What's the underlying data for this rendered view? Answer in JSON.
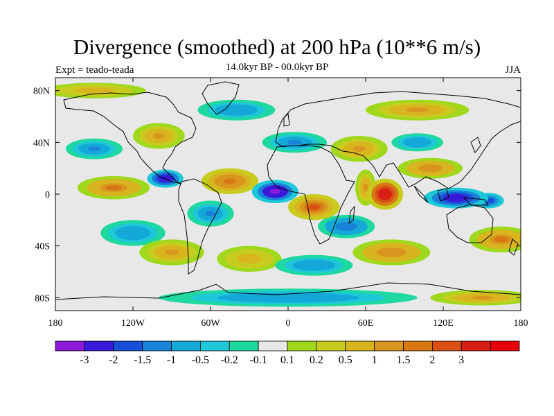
{
  "title": "Divergence (smoothed) at 200 hPa (10**6 m/s)",
  "subtitle": "14.0kyr BP - 00.0kyr BP",
  "experiment": "Expt = teado-teada",
  "season": "JJA",
  "map": {
    "projection": "cylindrical-equidistant",
    "lon_range": [
      -180,
      180
    ],
    "lat_range": [
      -90,
      90
    ],
    "lat_labels": [
      {
        "lat": 80,
        "label": "80N"
      },
      {
        "lat": 40,
        "label": "40N"
      },
      {
        "lat": 0,
        "label": "0"
      },
      {
        "lat": -40,
        "label": "40S"
      },
      {
        "lat": -80,
        "label": "80S"
      }
    ],
    "lon_labels": [
      {
        "lon": -180,
        "label": "180"
      },
      {
        "lon": -120,
        "label": "120W"
      },
      {
        "lon": -60,
        "label": "60W"
      },
      {
        "lon": 0,
        "label": "0"
      },
      {
        "lon": 60,
        "label": "60E"
      },
      {
        "lon": 120,
        "label": "120E"
      },
      {
        "lon": 180,
        "label": "180"
      }
    ],
    "field_features": [
      {
        "lon": -10,
        "lat": 2,
        "value": -3.5,
        "rx": 18,
        "ry": 9
      },
      {
        "lon": -95,
        "lat": 12,
        "value": -2.6,
        "rx": 14,
        "ry": 7
      },
      {
        "lon": 130,
        "lat": -3,
        "value": -3.0,
        "rx": 25,
        "ry": 8
      },
      {
        "lon": 155,
        "lat": -5,
        "value": -2.0,
        "rx": 12,
        "ry": 6
      },
      {
        "lon": 75,
        "lat": 0,
        "value": 3.8,
        "rx": 14,
        "ry": 12
      },
      {
        "lon": 20,
        "lat": -10,
        "value": 2.0,
        "rx": 20,
        "ry": 10
      },
      {
        "lon": -45,
        "lat": 10,
        "value": 1.8,
        "rx": 22,
        "ry": 10
      },
      {
        "lon": -135,
        "lat": 5,
        "value": 1.6,
        "rx": 28,
        "ry": 9
      },
      {
        "lon": 110,
        "lat": 20,
        "value": 1.4,
        "rx": 25,
        "ry": 8
      },
      {
        "lon": 55,
        "lat": 35,
        "value": 1.1,
        "rx": 22,
        "ry": 10
      },
      {
        "lon": -100,
        "lat": 45,
        "value": 1.2,
        "rx": 20,
        "ry": 10
      },
      {
        "lon": -150,
        "lat": 35,
        "value": -1.1,
        "rx": 22,
        "ry": 8
      },
      {
        "lon": 5,
        "lat": 40,
        "value": -1.2,
        "rx": 25,
        "ry": 8
      },
      {
        "lon": 100,
        "lat": 40,
        "value": -1.0,
        "rx": 20,
        "ry": 7
      },
      {
        "lon": -60,
        "lat": -15,
        "value": -1.2,
        "rx": 18,
        "ry": 10
      },
      {
        "lon": 45,
        "lat": -25,
        "value": -1.3,
        "rx": 22,
        "ry": 9
      },
      {
        "lon": 165,
        "lat": -35,
        "value": 1.5,
        "rx": 25,
        "ry": 10
      },
      {
        "lon": -90,
        "lat": -45,
        "value": 1.2,
        "rx": 25,
        "ry": 10
      },
      {
        "lon": 80,
        "lat": -45,
        "value": 1.3,
        "rx": 30,
        "ry": 10
      },
      {
        "lon": 20,
        "lat": -55,
        "value": -1.0,
        "rx": 30,
        "ry": 8
      },
      {
        "lon": -30,
        "lat": -50,
        "value": 0.8,
        "rx": 25,
        "ry": 10
      },
      {
        "lon": -120,
        "lat": -30,
        "value": -0.9,
        "rx": 25,
        "ry": 10
      },
      {
        "lon": -40,
        "lat": 65,
        "value": -0.9,
        "rx": 30,
        "ry": 8
      },
      {
        "lon": 100,
        "lat": 65,
        "value": 1.0,
        "rx": 40,
        "ry": 8
      },
      {
        "lon": 0,
        "lat": -80,
        "value": -1.0,
        "rx": 100,
        "ry": 7
      },
      {
        "lon": 150,
        "lat": -80,
        "value": 1.0,
        "rx": 40,
        "ry": 6
      },
      {
        "lon": -150,
        "lat": 80,
        "value": 0.8,
        "rx": 40,
        "ry": 6
      },
      {
        "lon": 60,
        "lat": 5,
        "value": 1.2,
        "rx": 8,
        "ry": 14
      }
    ]
  },
  "colorbar": {
    "colors": [
      "#8c1ad8",
      "#3a1ad8",
      "#1a50d8",
      "#1a82d8",
      "#14a8d8",
      "#1ec8d8",
      "#1ed8a0",
      "#e8e8e8",
      "#a0d81e",
      "#c8cc1e",
      "#d8b41e",
      "#d8961e",
      "#d87814",
      "#d85014",
      "#d81e14",
      "#e6000a"
    ],
    "thresholds": [
      -4,
      -3,
      -2,
      -1.5,
      -1,
      -0.5,
      -0.2,
      -0.1,
      0.1,
      0.2,
      0.5,
      1,
      1.5,
      2,
      3,
      4
    ],
    "labels": [
      "-3",
      "-2",
      "-1.5",
      "-1",
      "-0.5",
      "-0.2",
      "-0.1",
      "0.1",
      "0.2",
      "0.5",
      "1",
      "1.5",
      "2",
      "3"
    ]
  }
}
